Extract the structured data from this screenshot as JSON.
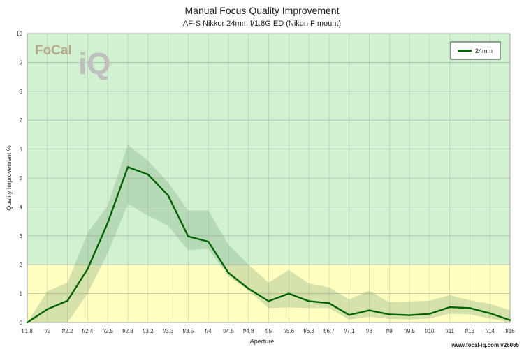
{
  "chart_data": {
    "type": "line",
    "title": "Manual Focus Quality Improvement",
    "subtitle": "AF-S Nikkor 24mm f/1.8G ED (Nikon F mount)",
    "xlabel": "Aperture",
    "ylabel": "Quality Improvement %",
    "ylim": [
      0,
      10
    ],
    "yticks": [
      "0",
      "1",
      "2",
      "3",
      "4",
      "5",
      "6",
      "7",
      "8",
      "9",
      "10"
    ],
    "categories": [
      "f/1.8",
      "f/2",
      "f/2.2",
      "f/2.4",
      "f/2.5",
      "f/2.8",
      "f/3.2",
      "f/3.3",
      "f/3.5",
      "f/4",
      "f/4.5",
      "f/4.8",
      "f/5",
      "f/5.6",
      "f/6.3",
      "f/6.7",
      "f/7.1",
      "f/8",
      "f/9",
      "f/9.5",
      "f/10",
      "f/11",
      "f/13",
      "f/14",
      "f/16"
    ],
    "series": [
      {
        "name": "24mm",
        "color": "#006400",
        "band_color": "#7fa67f",
        "values": [
          0.0,
          0.46,
          0.75,
          1.85,
          3.45,
          5.38,
          5.12,
          4.4,
          2.98,
          2.8,
          1.72,
          1.17,
          0.74,
          1.0,
          0.74,
          0.67,
          0.26,
          0.42,
          0.28,
          0.25,
          0.3,
          0.53,
          0.5,
          0.32,
          0.08
        ],
        "upper": [
          0.0,
          1.08,
          1.38,
          3.1,
          4.05,
          6.15,
          5.6,
          4.85,
          3.88,
          3.88,
          2.7,
          2.0,
          1.38,
          1.82,
          1.35,
          1.22,
          0.8,
          1.1,
          0.7,
          0.73,
          0.75,
          0.95,
          0.77,
          0.65,
          0.42
        ],
        "lower": [
          0.0,
          0.0,
          0.0,
          1.0,
          2.4,
          4.1,
          3.7,
          3.35,
          2.5,
          2.55,
          1.6,
          1.1,
          0.5,
          0.52,
          0.5,
          0.5,
          0.1,
          0.2,
          0.12,
          0.1,
          0.14,
          0.3,
          0.28,
          0.14,
          0.0
        ]
      }
    ],
    "zones": [
      {
        "from": 0,
        "to": 2,
        "color": "#ffffc0"
      },
      {
        "from": 2,
        "to": 10,
        "color": "#d0f2d0"
      }
    ],
    "grid": true,
    "legend_position": "top-right"
  },
  "logo": {
    "brand": "FoCal",
    "mark": "iQ"
  },
  "footer": {
    "text": "www.focal-iq.com  v26065"
  }
}
